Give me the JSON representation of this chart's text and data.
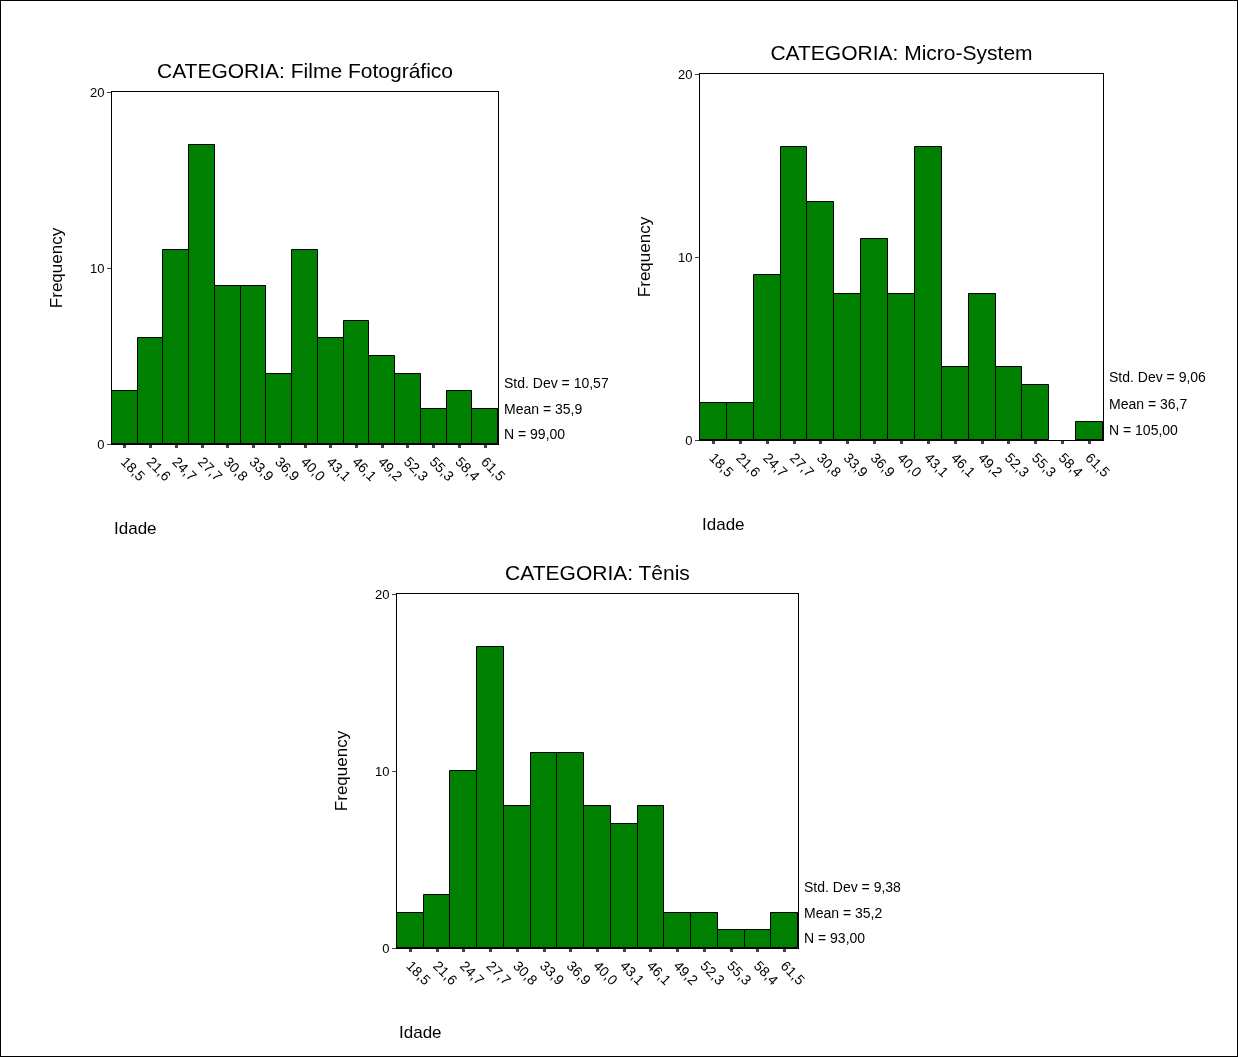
{
  "chart_data": [
    {
      "type": "bar",
      "title": "CATEGORIA: Filme Fotográfico",
      "xlabel": "Idade",
      "ylabel": "Frequency",
      "categories": [
        "18,5",
        "21,6",
        "24,7",
        "27,7",
        "30,8",
        "33,9",
        "36,9",
        "40,0",
        "43,1",
        "46,1",
        "49,2",
        "52,3",
        "55,3",
        "58,4",
        "61,5"
      ],
      "values": [
        3,
        6,
        11,
        17,
        9,
        9,
        4,
        11,
        6,
        7,
        5,
        4,
        2,
        3,
        2
      ],
      "color": "#008000",
      "ylim": [
        0,
        20
      ],
      "yticks": [
        0,
        10,
        20
      ],
      "annotations": [
        "Std. Dev = 10,57",
        "Mean = 35,9",
        "N = 99,00"
      ]
    },
    {
      "type": "bar",
      "title": "CATEGORIA: Micro-System",
      "xlabel": "Idade",
      "ylabel": "Frequency",
      "categories": [
        "18,5",
        "21,6",
        "24,7",
        "27,7",
        "30,8",
        "33,9",
        "36,9",
        "40,0",
        "43,1",
        "46,1",
        "49,2",
        "52,3",
        "55,3",
        "58,4",
        "61,5"
      ],
      "values": [
        2,
        2,
        9,
        16,
        13,
        8,
        11,
        8,
        16,
        4,
        8,
        4,
        3,
        0,
        1
      ],
      "color": "#008000",
      "ylim": [
        0,
        20
      ],
      "yticks": [
        0,
        10,
        20
      ],
      "annotations": [
        "Std. Dev = 9,06",
        "Mean = 36,7",
        "N = 105,00"
      ]
    },
    {
      "type": "bar",
      "title": "CATEGORIA: Tênis",
      "xlabel": "Idade",
      "ylabel": "Frequency",
      "categories": [
        "18,5",
        "21,6",
        "24,7",
        "27,7",
        "30,8",
        "33,9",
        "36,9",
        "40,0",
        "43,1",
        "46,1",
        "49,2",
        "52,3",
        "55,3",
        "58,4",
        "61,5"
      ],
      "values": [
        2,
        3,
        10,
        17,
        8,
        11,
        11,
        8,
        7,
        8,
        2,
        2,
        1,
        1,
        2
      ],
      "color": "#008000",
      "ylim": [
        0,
        20
      ],
      "yticks": [
        0,
        10,
        20
      ],
      "annotations": [
        "Std. Dev = 9,38",
        "Mean = 35,2",
        "N = 93,00"
      ]
    }
  ]
}
